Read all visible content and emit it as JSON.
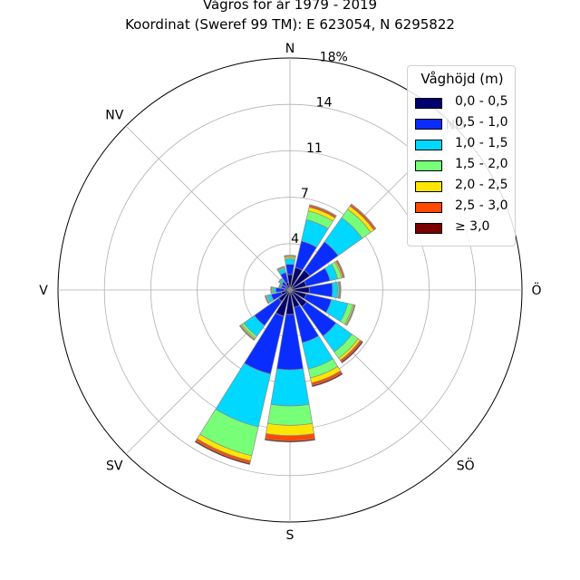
{
  "title_line1": "Vågros för år 1979 - 2019",
  "title_line2": "Koordinat (Sweref 99 TM): E 623054, N 6295822",
  "chart_data": {
    "type": "polar-bar-stacked",
    "direction_labels": [
      "N",
      "NO",
      "Ö",
      "SÖ",
      "S",
      "SV",
      "V",
      "NV"
    ],
    "radial_tick_labels": [
      "4",
      "7",
      "11",
      "14",
      "18%"
    ],
    "radial_ticks": [
      3.6,
      7.2,
      10.8,
      14.4,
      18
    ],
    "rmax": 18,
    "legend_title": "Våghöjd (m)",
    "bins": [
      "0,0 - 0,5",
      "0,5 - 1,0",
      "1,0 - 1,5",
      "1,5 - 2,0",
      "2,0 - 2,5",
      "2,5 - 3,0",
      "≥ 3,0"
    ],
    "colors": [
      "#00006e",
      "#0a2dff",
      "#00d8ff",
      "#78ff78",
      "#ffe600",
      "#ff4a00",
      "#7a0000"
    ],
    "sector_directions_deg": [
      0,
      22.5,
      45,
      67.5,
      90,
      112.5,
      135,
      157.5,
      180,
      202.5,
      225,
      247.5,
      270,
      292.5,
      315,
      337.5
    ],
    "sector_cumulative_percent": [
      [
        1.2,
        2.0,
        2.4,
        2.5,
        2.6,
        2.65,
        2.7
      ],
      [
        1.8,
        3.9,
        5.6,
        6.3,
        6.6,
        6.75,
        6.8
      ],
      [
        1.9,
        4.6,
        6.9,
        7.7,
        8.0,
        8.15,
        8.2
      ],
      [
        1.3,
        3.2,
        3.8,
        4.1,
        4.2,
        4.3,
        4.35
      ],
      [
        1.5,
        3.3,
        3.7,
        3.8,
        3.85,
        3.9,
        3.95
      ],
      [
        1.3,
        3.3,
        4.6,
        5.0,
        5.1,
        5.15,
        5.2
      ],
      [
        1.6,
        4.4,
        5.9,
        6.5,
        6.7,
        6.85,
        6.95
      ],
      [
        1.4,
        4.2,
        6.3,
        7.0,
        7.4,
        7.6,
        7.7
      ],
      [
        1.9,
        6.2,
        9.0,
        10.5,
        11.3,
        11.7,
        11.8
      ],
      [
        2.1,
        6.7,
        10.9,
        13.2,
        13.6,
        13.8,
        13.9
      ],
      [
        1.1,
        3.4,
        4.4,
        4.6,
        4.7,
        4.75,
        4.8
      ],
      [
        0.7,
        1.5,
        1.8,
        1.9,
        1.95,
        2.0,
        2.0
      ],
      [
        0.4,
        1.1,
        1.3,
        1.4,
        1.45,
        1.5,
        1.5
      ],
      [
        0.3,
        0.7,
        0.8,
        0.85,
        0.9,
        0.9,
        0.9
      ],
      [
        0.4,
        0.8,
        1.0,
        1.05,
        1.1,
        1.1,
        1.1
      ],
      [
        0.6,
        1.4,
        1.7,
        1.8,
        1.85,
        1.9,
        1.9
      ]
    ]
  }
}
